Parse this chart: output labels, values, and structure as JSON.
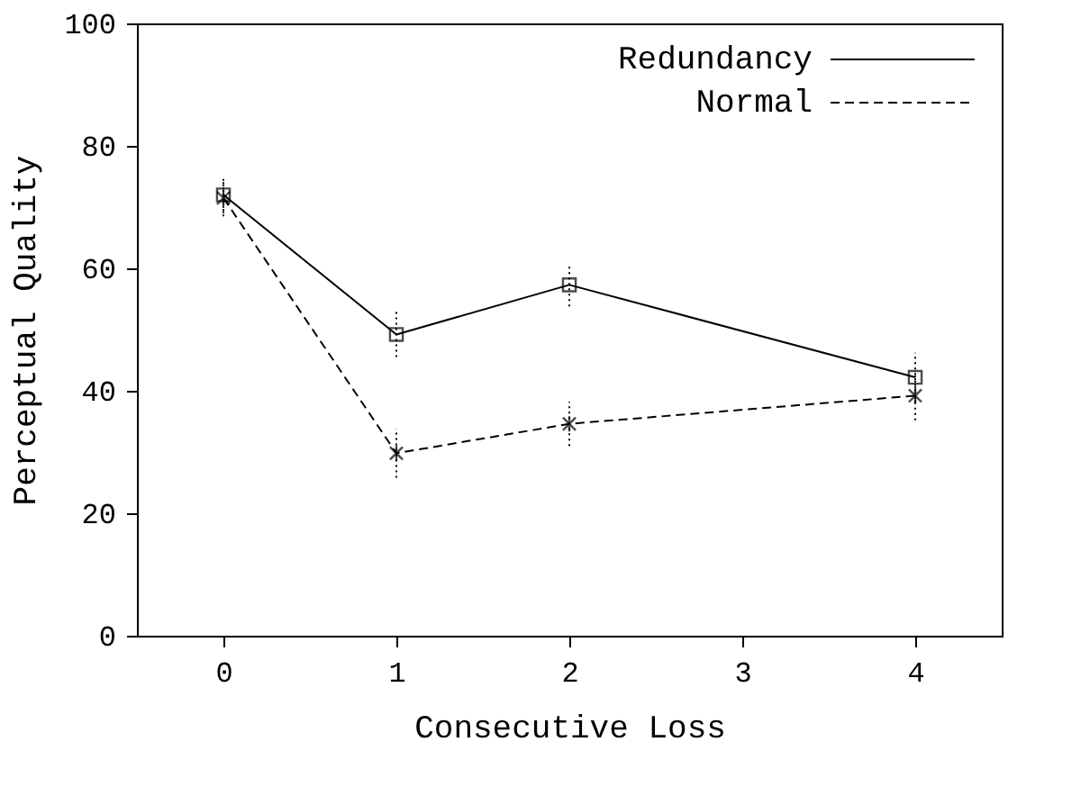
{
  "chart_data": {
    "type": "line",
    "xlabel": "Consecutive Loss",
    "ylabel": "Perceptual Quality",
    "x": [
      0,
      1,
      2,
      4
    ],
    "series": [
      {
        "name": "Redundancy",
        "color": "#000000",
        "values": [
          72,
          49.2,
          57.3,
          42.2
        ],
        "errors": [
          3,
          3.7,
          3.5,
          4
        ],
        "line_style": "solid",
        "marker": "square"
      },
      {
        "name": "Normal",
        "color": "#000000",
        "values": [
          71.5,
          29.8,
          34.6,
          39.2
        ],
        "errors": [
          3,
          4,
          3.6,
          4
        ],
        "line_style": "dashed",
        "marker": "cross"
      }
    ],
    "xlim": [
      -0.5,
      4.5
    ],
    "xticks": [
      0,
      1,
      2,
      3,
      4
    ],
    "ylim": [
      0,
      100
    ],
    "yticks": [
      0,
      20,
      40,
      60,
      80,
      100
    ],
    "grid": false,
    "legend": "top right"
  }
}
